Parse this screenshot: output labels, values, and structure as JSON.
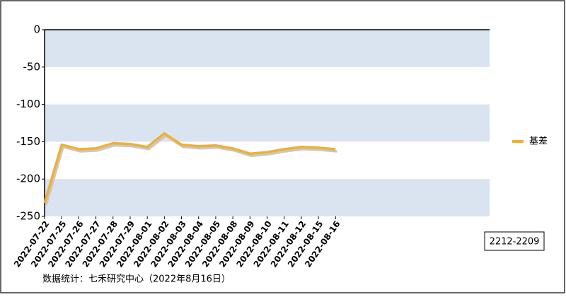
{
  "chart_data": {
    "type": "line",
    "categories": [
      "2022-07-22",
      "2022-07-25",
      "2022-07-26",
      "2022-07-27",
      "2022-07-28",
      "2022-07-29",
      "2022-08-01",
      "2022-08-02",
      "2022-08-03",
      "2022-08-04",
      "2022-08-05",
      "2022-08-08",
      "2022-08-09",
      "2022-08-10",
      "2022-08-11",
      "2022-08-12",
      "2022-08-15",
      "2022-08-16",
      null,
      null,
      null,
      null,
      null,
      null,
      null,
      null,
      null
    ],
    "series": [
      {
        "name": "基差",
        "color": "#f0b030",
        "values": [
          -232,
          -154,
          -160,
          -159,
          -152,
          -153,
          -157,
          -139,
          -154,
          -156,
          -155,
          -159,
          -166,
          -164,
          -160,
          -157,
          -158,
          -160,
          null,
          null,
          null,
          null,
          null,
          null,
          null,
          null,
          null
        ]
      }
    ],
    "ylim": [
      -250,
      0
    ],
    "yticks": [
      0,
      -50,
      -100,
      -150,
      -200,
      -250
    ],
    "band_color": "#d9e4f0",
    "legend": "right",
    "contract": "2212-2209",
    "footer": "数据统计：七禾研究中心（2022年8月16日）"
  }
}
